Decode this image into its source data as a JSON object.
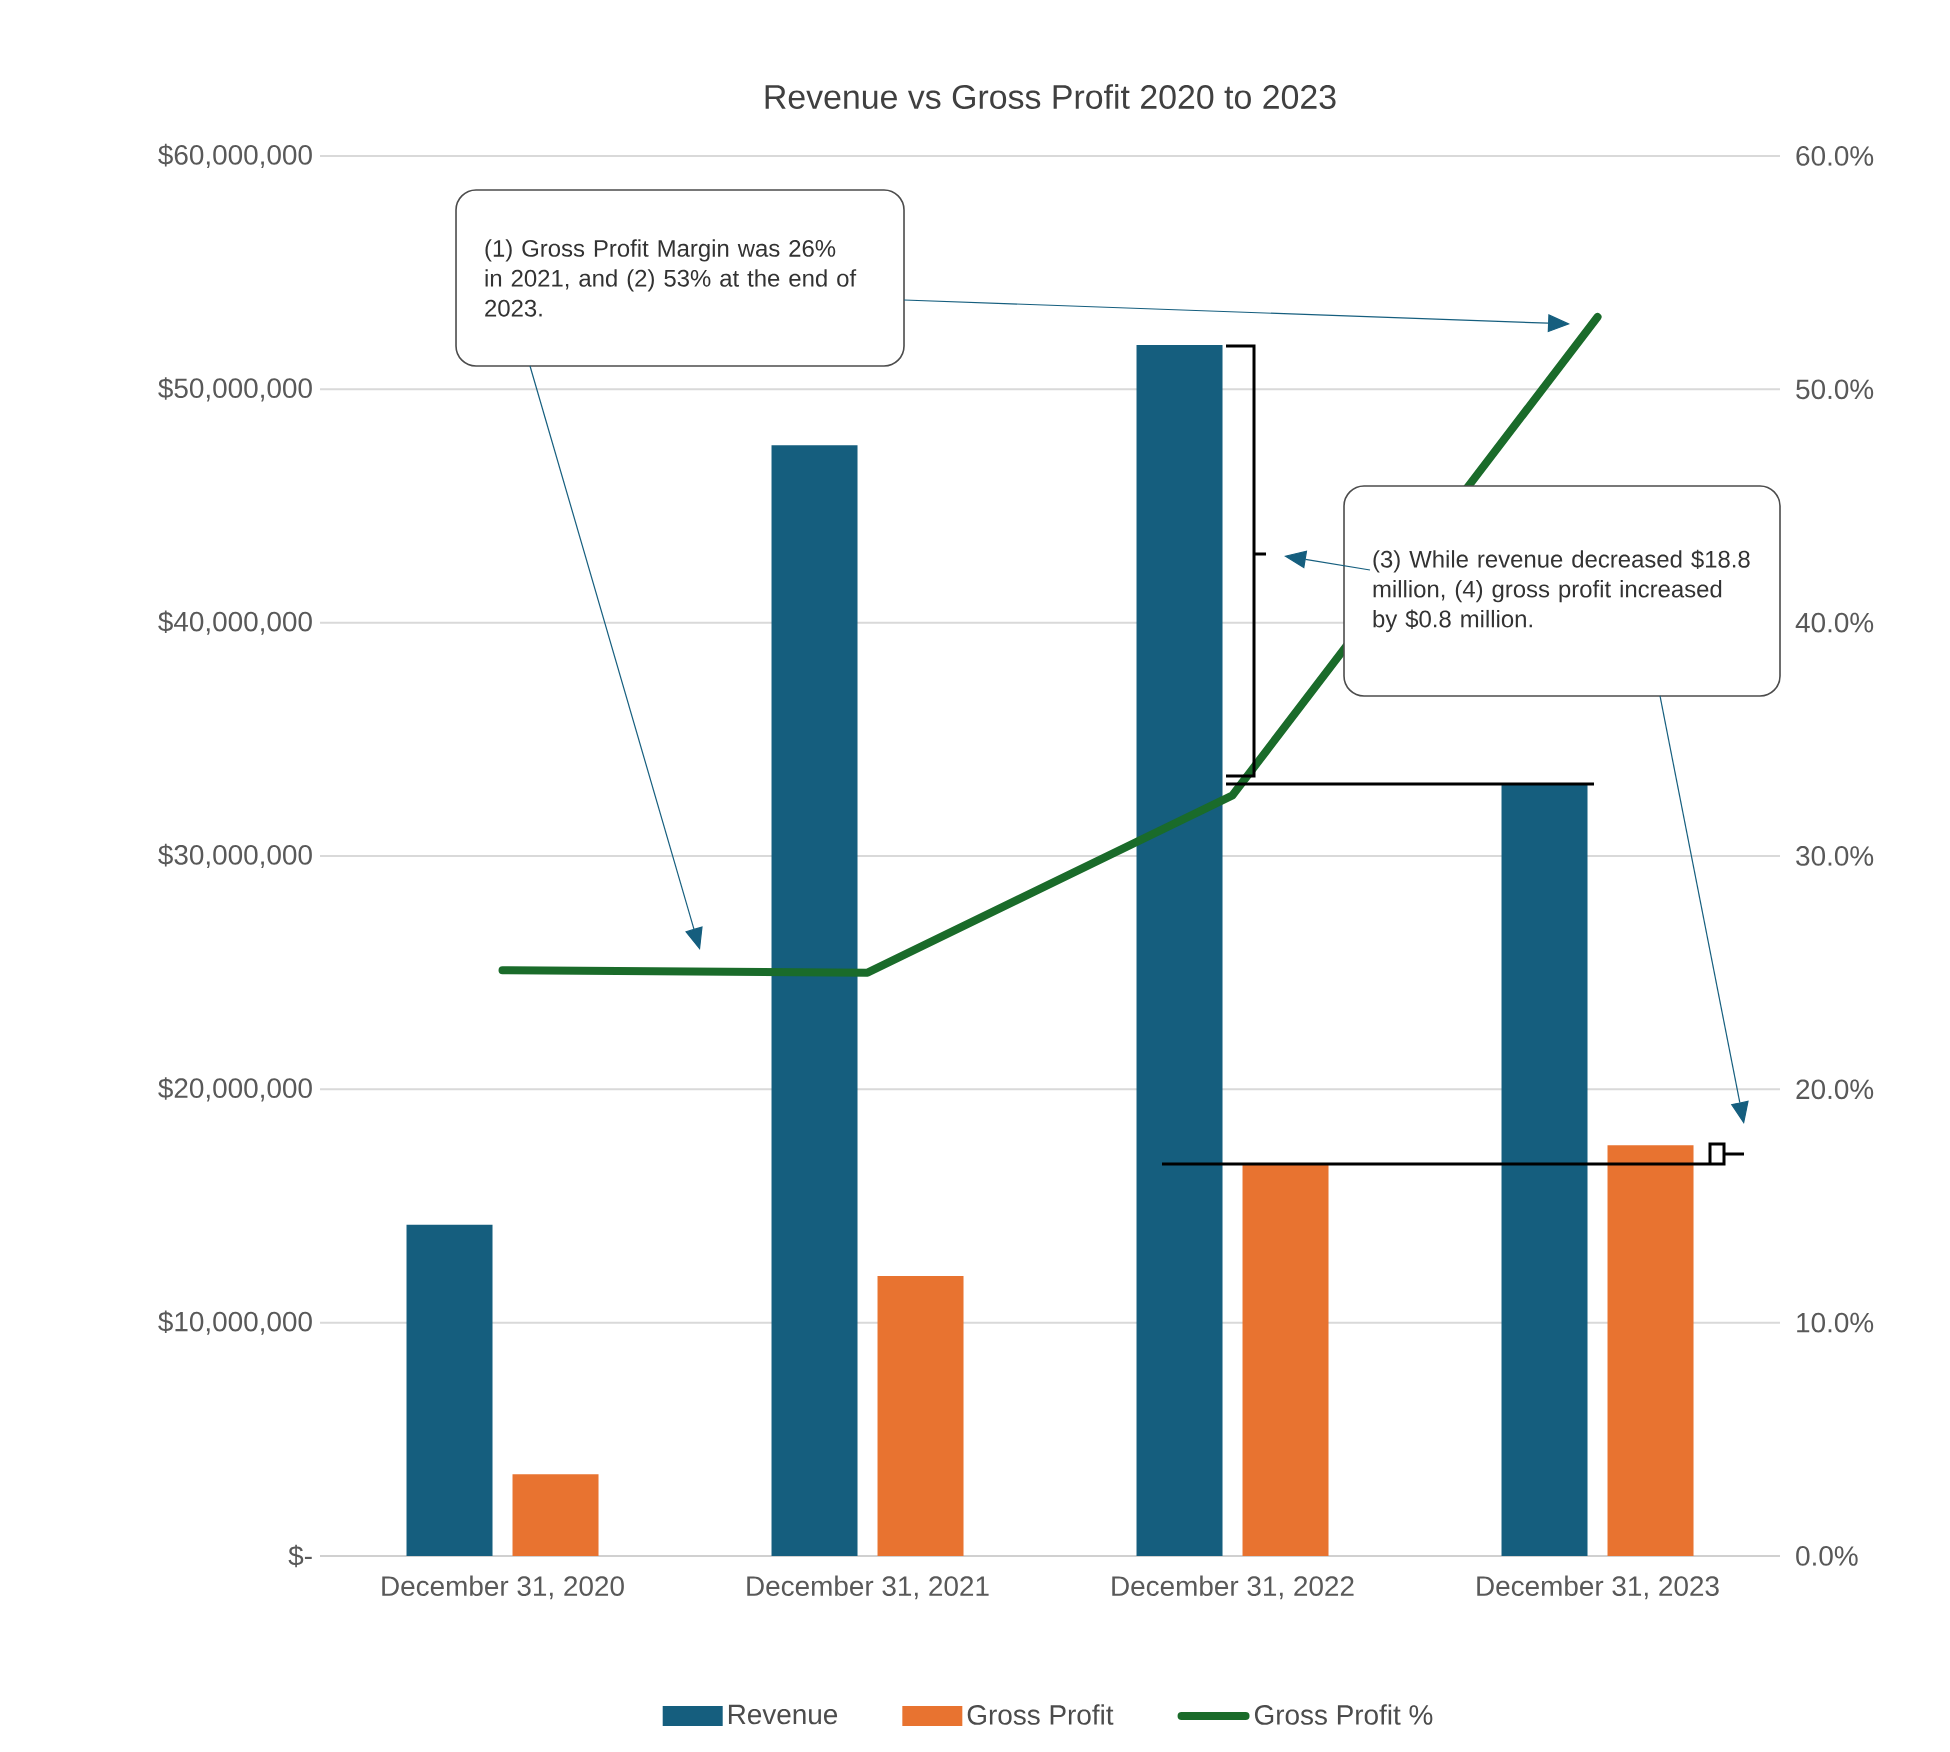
{
  "chart_data": {
    "type": "bar",
    "title": "Revenue vs Gross Profit 2020 to 2023",
    "categories": [
      "December 31, 2020",
      "December 31, 2021",
      "December 31, 2022",
      "December 31, 2023"
    ],
    "series": [
      {
        "name": "Revenue",
        "color": "#155e7e",
        "values": [
          14200000,
          47600000,
          51900000,
          33100000
        ]
      },
      {
        "name": "Gross Profit",
        "color": "#e87330",
        "values": [
          3500000,
          12000000,
          16800000,
          17600000
        ]
      },
      {
        "name": "Gross Profit %",
        "type": "line",
        "axis": "y2",
        "color": "#1a6b2a",
        "values": [
          25.1,
          25.0,
          32.6,
          53.1
        ]
      }
    ],
    "ylim": [
      0,
      60000000
    ],
    "yticks": [
      {
        "value": 0,
        "label": "$-"
      },
      {
        "value": 10000000,
        "label": "$10,000,000"
      },
      {
        "value": 20000000,
        "label": "$20,000,000"
      },
      {
        "value": 30000000,
        "label": "$30,000,000"
      },
      {
        "value": 40000000,
        "label": "$40,000,000"
      },
      {
        "value": 50000000,
        "label": "$50,000,000"
      },
      {
        "value": 60000000,
        "label": "$60,000,000"
      }
    ],
    "y2lim": [
      0,
      60
    ],
    "y2ticks": [
      {
        "value": 0,
        "label": "0.0%"
      },
      {
        "value": 10,
        "label": "10.0%"
      },
      {
        "value": 20,
        "label": "20.0%"
      },
      {
        "value": 30,
        "label": "30.0%"
      },
      {
        "value": 40,
        "label": "40.0%"
      },
      {
        "value": 50,
        "label": "50.0%"
      },
      {
        "value": 60,
        "label": "60.0%"
      }
    ],
    "annotations": [
      "(1) Gross Profit Margin was 26% in 2021, and (2) 53% at the end of 2023.",
      "(3) While revenue decreased $18.8 million, (4) gross profit increased by $0.8 million."
    ],
    "grid": "y",
    "legend": "bottom"
  }
}
